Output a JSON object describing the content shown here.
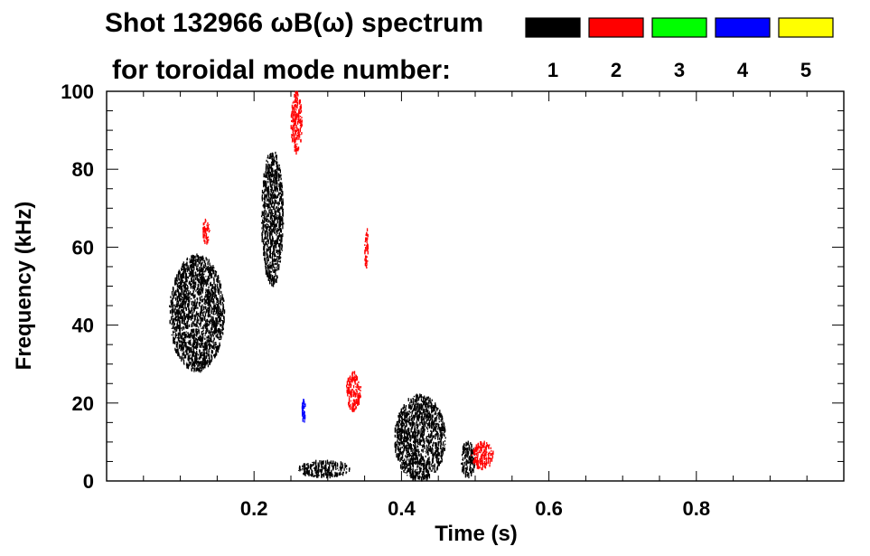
{
  "header": {
    "title_line1": "Shot 132966 ωB(ω) spectrum",
    "title_line2": "for toroidal mode number:"
  },
  "legend": [
    {
      "label": "1",
      "color": "#000000"
    },
    {
      "label": "2",
      "color": "#ff0000"
    },
    {
      "label": "3",
      "color": "#00ff00"
    },
    {
      "label": "4",
      "color": "#0000ff"
    },
    {
      "label": "5",
      "color": "#ffff00"
    }
  ],
  "chart_data": {
    "type": "heatmap",
    "title": "Shot 132966 ωB(ω) spectrum",
    "xlabel": "Time (s)",
    "ylabel": "Frequency (kHz)",
    "xlim": [
      0.0,
      1.0
    ],
    "ylim": [
      0,
      100
    ],
    "xticks": [
      0.2,
      0.4,
      0.6,
      0.8
    ],
    "xtick_labels": [
      "0.2",
      "0.4",
      "0.6",
      "0.8"
    ],
    "yticks": [
      0,
      20,
      40,
      60,
      80,
      100
    ],
    "ytick_labels": [
      "0",
      "20",
      "40",
      "60",
      "80",
      "100"
    ],
    "grid": false,
    "legend_position": "top-right",
    "series": [
      {
        "name": "1",
        "mode": 1,
        "color": "#000000",
        "blobs": [
          {
            "t": [
              0.085,
              0.16
            ],
            "f": [
              28,
              58
            ],
            "note": "burst near 45 kHz"
          },
          {
            "t": [
              0.21,
              0.24
            ],
            "f": [
              50,
              85
            ],
            "note": "burst near 65 kHz"
          },
          {
            "t": [
              0.26,
              0.33
            ],
            "f": [
              1,
              5
            ]
          },
          {
            "t": [
              0.39,
              0.46
            ],
            "f": [
              0,
              22
            ]
          },
          {
            "t": [
              0.48,
              0.5
            ],
            "f": [
              1,
              10
            ]
          }
        ]
      },
      {
        "name": "2",
        "mode": 2,
        "color": "#ff0000",
        "blobs": [
          {
            "t": [
              0.25,
              0.265
            ],
            "f": [
              84,
              100
            ]
          },
          {
            "t": [
              0.13,
              0.14
            ],
            "f": [
              61,
              67
            ]
          },
          {
            "t": [
              0.35,
              0.355
            ],
            "f": [
              54,
              65
            ]
          },
          {
            "t": [
              0.325,
              0.345
            ],
            "f": [
              18,
              28
            ]
          },
          {
            "t": [
              0.495,
              0.525
            ],
            "f": [
              3,
              10
            ]
          }
        ]
      },
      {
        "name": "3",
        "mode": 3,
        "color": "#00ff00",
        "blobs": []
      },
      {
        "name": "4",
        "mode": 4,
        "color": "#0000ff",
        "blobs": [
          {
            "t": [
              0.265,
              0.27
            ],
            "f": [
              15,
              21
            ]
          }
        ]
      },
      {
        "name": "5",
        "mode": 5,
        "color": "#ffff00",
        "blobs": []
      }
    ]
  }
}
